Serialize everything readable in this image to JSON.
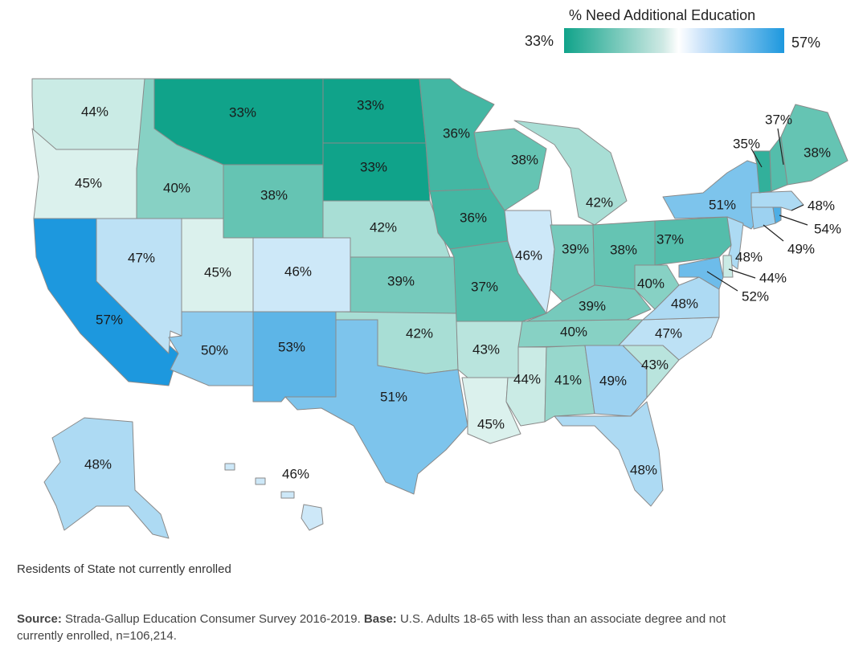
{
  "legend": {
    "title": "% Need Additional Education",
    "min_label": "33%",
    "max_label": "57%",
    "color_low": "#10a38a",
    "color_mid": "#ffffff",
    "color_high": "#1d98de"
  },
  "note": "Residents of State not currently enrolled",
  "source": {
    "label": "Source:",
    "text": "Strada-Gallup Education Consumer Survey 2016-2019.",
    "base_label": "Base:",
    "base_text": "U.S. Adults 18-65 with less than an associate degree and not currently enrolled, n=106,214."
  },
  "states": {
    "WA": {
      "label": "44%",
      "value": 44
    },
    "OR": {
      "label": "45%",
      "value": 45
    },
    "CA": {
      "label": "57%",
      "value": 57
    },
    "ID": {
      "label": "40%",
      "value": 40
    },
    "NV": {
      "label": "47%",
      "value": 47
    },
    "MT": {
      "label": "33%",
      "value": 33
    },
    "WY": {
      "label": "38%",
      "value": 38
    },
    "UT": {
      "label": "45%",
      "value": 45
    },
    "AZ": {
      "label": "50%",
      "value": 50
    },
    "CO": {
      "label": "46%",
      "value": 46
    },
    "NM": {
      "label": "53%",
      "value": 53
    },
    "ND": {
      "label": "33%",
      "value": 33
    },
    "SD": {
      "label": "33%",
      "value": 33
    },
    "NE": {
      "label": "42%",
      "value": 42
    },
    "KS": {
      "label": "39%",
      "value": 39
    },
    "OK": {
      "label": "42%",
      "value": 42
    },
    "TX": {
      "label": "51%",
      "value": 51
    },
    "MN": {
      "label": "36%",
      "value": 36
    },
    "IA": {
      "label": "36%",
      "value": 36
    },
    "MO": {
      "label": "37%",
      "value": 37
    },
    "AR": {
      "label": "43%",
      "value": 43
    },
    "LA": {
      "label": "45%",
      "value": 45
    },
    "WI": {
      "label": "38%",
      "value": 38
    },
    "IL": {
      "label": "46%",
      "value": 46
    },
    "MI": {
      "label": "42%",
      "value": 42
    },
    "IN": {
      "label": "39%",
      "value": 39
    },
    "OH": {
      "label": "38%",
      "value": 38
    },
    "KY": {
      "label": "39%",
      "value": 39
    },
    "TN": {
      "label": "40%",
      "value": 40
    },
    "MS": {
      "label": "44%",
      "value": 44
    },
    "AL": {
      "label": "41%",
      "value": 41
    },
    "GA": {
      "label": "49%",
      "value": 49
    },
    "FL": {
      "label": "48%",
      "value": 48
    },
    "SC": {
      "label": "43%",
      "value": 43
    },
    "NC": {
      "label": "47%",
      "value": 47
    },
    "VA": {
      "label": "48%",
      "value": 48
    },
    "WV": {
      "label": "40%",
      "value": 40
    },
    "PA": {
      "label": "37%",
      "value": 37
    },
    "NY": {
      "label": "51%",
      "value": 51
    },
    "VT": {
      "label": "35%",
      "value": 35
    },
    "NH": {
      "label": "37%",
      "value": 37
    },
    "ME": {
      "label": "38%",
      "value": 38
    },
    "MA": {
      "label": "48%",
      "value": 48
    },
    "RI": {
      "label": "54%",
      "value": 54
    },
    "CT": {
      "label": "49%",
      "value": 49
    },
    "NJ": {
      "label": "48%",
      "value": 48
    },
    "DE": {
      "label": "44%",
      "value": 44
    },
    "MD": {
      "label": "52%",
      "value": 52
    },
    "AK": {
      "label": "48%",
      "value": 48
    },
    "HI": {
      "label": "46%",
      "value": 46
    }
  }
}
